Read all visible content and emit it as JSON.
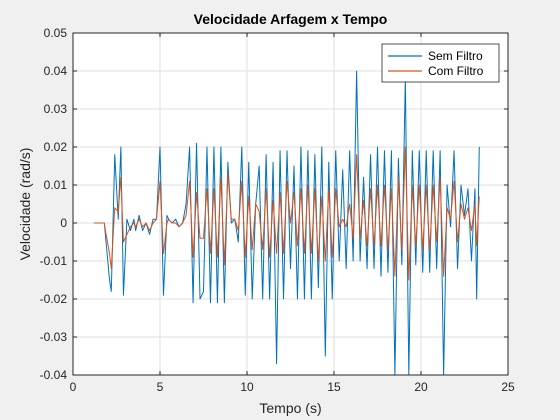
{
  "chart_data": {
    "type": "line",
    "title": "Velocidade Arfagem x Tempo",
    "xlabel": "Tempo (s)",
    "ylabel": "Velocidade (rad/s)",
    "xlim": [
      0,
      25
    ],
    "ylim": [
      -0.04,
      0.05
    ],
    "xticks": [
      0,
      5,
      10,
      15,
      20,
      25
    ],
    "yticks": [
      -0.04,
      -0.03,
      -0.02,
      -0.01,
      0,
      0.01,
      0.02,
      0.03,
      0.04,
      0.05
    ],
    "xtick_labels": [
      "0",
      "5",
      "10",
      "15",
      "20",
      "25"
    ],
    "ytick_labels": [
      "-0.04",
      "-0.03",
      "-0.02",
      "-0.01",
      "0",
      "0.01",
      "0.02",
      "0.03",
      "0.04",
      "0.05"
    ],
    "grid": true,
    "legend_position": "top-right",
    "series": [
      {
        "name": "Sem Filtro",
        "color": "#0072BD",
        "points": [
          [
            1.2,
            0
          ],
          [
            1.3,
            0
          ],
          [
            1.4,
            0
          ],
          [
            1.5,
            0
          ],
          [
            1.6,
            0
          ],
          [
            1.7,
            0
          ],
          [
            1.8,
            0
          ],
          [
            1.9,
            -0.005
          ],
          [
            2.1,
            -0.015
          ],
          [
            2.2,
            -0.018
          ],
          [
            2.4,
            0.018
          ],
          [
            2.6,
            0.001
          ],
          [
            2.75,
            0.02
          ],
          [
            2.9,
            -0.019
          ],
          [
            3.1,
            0.001
          ],
          [
            3.3,
            -0.002
          ],
          [
            3.5,
            0.001
          ],
          [
            3.6,
            -0.002
          ],
          [
            3.8,
            0.002
          ],
          [
            4.0,
            -0.002
          ],
          [
            4.2,
            0
          ],
          [
            4.4,
            -0.003
          ],
          [
            4.6,
            0.001
          ],
          [
            4.8,
            0.001
          ],
          [
            5.0,
            0.02
          ],
          [
            5.2,
            -0.019
          ],
          [
            5.4,
            0.002
          ],
          [
            5.5,
            0.001
          ],
          [
            5.7,
            0
          ],
          [
            5.9,
            0.001
          ],
          [
            6.1,
            -0.001
          ],
          [
            6.3,
            0
          ],
          [
            6.5,
            0.005
          ],
          [
            6.7,
            0.02
          ],
          [
            6.9,
            -0.021
          ],
          [
            7.1,
            0.021
          ],
          [
            7.3,
            -0.02
          ],
          [
            7.5,
            -0.018
          ],
          [
            7.7,
            0.02
          ],
          [
            7.9,
            -0.021
          ],
          [
            8.1,
            0.02
          ],
          [
            8.3,
            -0.021
          ],
          [
            8.5,
            0.02
          ],
          [
            8.7,
            -0.021
          ],
          [
            8.9,
            0.016
          ],
          [
            9.1,
            0
          ],
          [
            9.3,
            0.001
          ],
          [
            9.5,
            -0.005
          ],
          [
            9.7,
            0.02
          ],
          [
            9.9,
            -0.019
          ],
          [
            10.1,
            0.016
          ],
          [
            10.3,
            -0.02
          ],
          [
            10.5,
            0.005
          ],
          [
            10.7,
            0.015
          ],
          [
            10.9,
            -0.02
          ],
          [
            11.1,
            0.018
          ],
          [
            11.3,
            -0.02
          ],
          [
            11.5,
            0.016
          ],
          [
            11.7,
            -0.037
          ],
          [
            11.9,
            0.019
          ],
          [
            12.1,
            -0.02
          ],
          [
            12.3,
            0.019
          ],
          [
            12.5,
            -0.012
          ],
          [
            12.7,
            0.015
          ],
          [
            12.9,
            -0.02
          ],
          [
            13.1,
            0.02
          ],
          [
            13.3,
            -0.02
          ],
          [
            13.5,
            0.019
          ],
          [
            13.7,
            -0.02
          ],
          [
            13.9,
            0.018
          ],
          [
            14.1,
            -0.017
          ],
          [
            14.3,
            0.02
          ],
          [
            14.5,
            -0.035
          ],
          [
            14.7,
            0.016
          ],
          [
            14.9,
            -0.02
          ],
          [
            15.1,
            0.019
          ],
          [
            15.3,
            -0.01
          ],
          [
            15.5,
            0.014
          ],
          [
            15.7,
            -0.012
          ],
          [
            15.9,
            0.019
          ],
          [
            16.1,
            -0.01
          ],
          [
            16.3,
            0.04
          ],
          [
            16.5,
            -0.01
          ],
          [
            16.7,
            0.012
          ],
          [
            16.9,
            -0.012
          ],
          [
            17.1,
            0.018
          ],
          [
            17.3,
            -0.012
          ],
          [
            17.5,
            0.02
          ],
          [
            17.7,
            -0.014
          ],
          [
            17.9,
            0.019
          ],
          [
            18.1,
            -0.013
          ],
          [
            18.3,
            0.019
          ],
          [
            18.5,
            -0.04
          ],
          [
            18.7,
            0.017
          ],
          [
            18.9,
            -0.011
          ],
          [
            19.1,
            0.038
          ],
          [
            19.3,
            -0.04
          ],
          [
            19.5,
            0.019
          ],
          [
            19.7,
            -0.011
          ],
          [
            19.9,
            0.019
          ],
          [
            20.1,
            -0.013
          ],
          [
            20.3,
            0.019
          ],
          [
            20.5,
            -0.013
          ],
          [
            20.7,
            0.019
          ],
          [
            20.9,
            -0.012
          ],
          [
            21.1,
            0.019
          ],
          [
            21.3,
            -0.04
          ],
          [
            21.5,
            0.01
          ],
          [
            21.7,
            -0.001
          ],
          [
            21.9,
            0.019
          ],
          [
            22.1,
            -0.012
          ],
          [
            22.3,
            0.01
          ],
          [
            22.5,
            0.002
          ],
          [
            22.7,
            0.009
          ],
          [
            22.9,
            -0.01
          ],
          [
            23.1,
            0.009
          ],
          [
            23.2,
            -0.02
          ],
          [
            23.35,
            0.02
          ]
        ]
      },
      {
        "name": "Com Filtro",
        "color": "#D95319",
        "points": [
          [
            1.2,
            0
          ],
          [
            1.3,
            0
          ],
          [
            1.4,
            0
          ],
          [
            1.5,
            0
          ],
          [
            1.6,
            0
          ],
          [
            1.7,
            0
          ],
          [
            1.8,
            0
          ],
          [
            1.9,
            -0.003
          ],
          [
            2.1,
            -0.008
          ],
          [
            2.2,
            -0.012
          ],
          [
            2.4,
            0.004
          ],
          [
            2.6,
            0.003
          ],
          [
            2.75,
            0.012
          ],
          [
            2.9,
            -0.005
          ],
          [
            3.1,
            -0.003
          ],
          [
            3.3,
            -0.001
          ],
          [
            3.5,
            0
          ],
          [
            3.6,
            -0.001
          ],
          [
            3.8,
            0.001
          ],
          [
            4.0,
            -0.001
          ],
          [
            4.2,
            0
          ],
          [
            4.4,
            -0.002
          ],
          [
            4.6,
            0
          ],
          [
            4.8,
            0.001
          ],
          [
            5.0,
            0.011
          ],
          [
            5.2,
            -0.008
          ],
          [
            5.4,
            0
          ],
          [
            5.5,
            0.001
          ],
          [
            5.7,
            0
          ],
          [
            5.9,
            0
          ],
          [
            6.1,
            -0.001
          ],
          [
            6.3,
            0
          ],
          [
            6.5,
            0.002
          ],
          [
            6.7,
            0.011
          ],
          [
            6.9,
            -0.009
          ],
          [
            7.1,
            0.008
          ],
          [
            7.3,
            -0.004
          ],
          [
            7.5,
            -0.004
          ],
          [
            7.7,
            0.009
          ],
          [
            7.9,
            -0.008
          ],
          [
            8.1,
            0.009
          ],
          [
            8.3,
            -0.009
          ],
          [
            8.5,
            0.012
          ],
          [
            8.7,
            -0.011
          ],
          [
            8.9,
            0.013
          ],
          [
            9.1,
            0.001
          ],
          [
            9.3,
            0.001
          ],
          [
            9.5,
            -0.002
          ],
          [
            9.7,
            0.011
          ],
          [
            9.9,
            -0.009
          ],
          [
            10.1,
            0.007
          ],
          [
            10.3,
            -0.007
          ],
          [
            10.5,
            0.005
          ],
          [
            10.7,
            0.003
          ],
          [
            10.9,
            -0.007
          ],
          [
            11.1,
            0.009
          ],
          [
            11.3,
            -0.009
          ],
          [
            11.5,
            0.006
          ],
          [
            11.7,
            -0.008
          ],
          [
            11.9,
            0.008
          ],
          [
            12.1,
            -0.008
          ],
          [
            12.3,
            0.011
          ],
          [
            12.5,
            0
          ],
          [
            12.7,
            0.008
          ],
          [
            12.9,
            -0.006
          ],
          [
            13.1,
            0.009
          ],
          [
            13.3,
            -0.008
          ],
          [
            13.5,
            0.01
          ],
          [
            13.7,
            -0.008
          ],
          [
            13.9,
            0.009
          ],
          [
            14.1,
            -0.01
          ],
          [
            14.3,
            0.007
          ],
          [
            14.5,
            -0.01
          ],
          [
            14.7,
            0.009
          ],
          [
            14.9,
            -0.009
          ],
          [
            15.1,
            0.009
          ],
          [
            15.3,
            -0.001
          ],
          [
            15.5,
            0.001
          ],
          [
            15.7,
            -0.001
          ],
          [
            15.9,
            0.005
          ],
          [
            16.1,
            -0.004
          ],
          [
            16.3,
            0.018
          ],
          [
            16.5,
            -0.004
          ],
          [
            16.7,
            0.006
          ],
          [
            16.9,
            -0.006
          ],
          [
            17.1,
            0.009
          ],
          [
            17.3,
            -0.006
          ],
          [
            17.5,
            0.01
          ],
          [
            17.7,
            -0.006
          ],
          [
            17.9,
            0.01
          ],
          [
            18.1,
            -0.007
          ],
          [
            18.3,
            0.009
          ],
          [
            18.5,
            -0.014
          ],
          [
            18.7,
            0.012
          ],
          [
            18.9,
            -0.007
          ],
          [
            19.1,
            0.02
          ],
          [
            19.3,
            -0.015
          ],
          [
            19.5,
            0.01
          ],
          [
            19.7,
            -0.006
          ],
          [
            19.9,
            0.01
          ],
          [
            20.1,
            -0.007
          ],
          [
            20.3,
            0.01
          ],
          [
            20.5,
            -0.007
          ],
          [
            20.7,
            0.01
          ],
          [
            20.9,
            -0.005
          ],
          [
            21.1,
            0.012
          ],
          [
            21.3,
            -0.014
          ],
          [
            21.5,
            0.004
          ],
          [
            21.7,
            0.001
          ],
          [
            21.9,
            0.011
          ],
          [
            22.1,
            -0.005
          ],
          [
            22.3,
            0.005
          ],
          [
            22.5,
            0.001
          ],
          [
            22.7,
            0.004
          ],
          [
            22.9,
            -0.002
          ],
          [
            23.1,
            0.005
          ],
          [
            23.2,
            -0.006
          ],
          [
            23.35,
            0.007
          ]
        ]
      }
    ]
  }
}
